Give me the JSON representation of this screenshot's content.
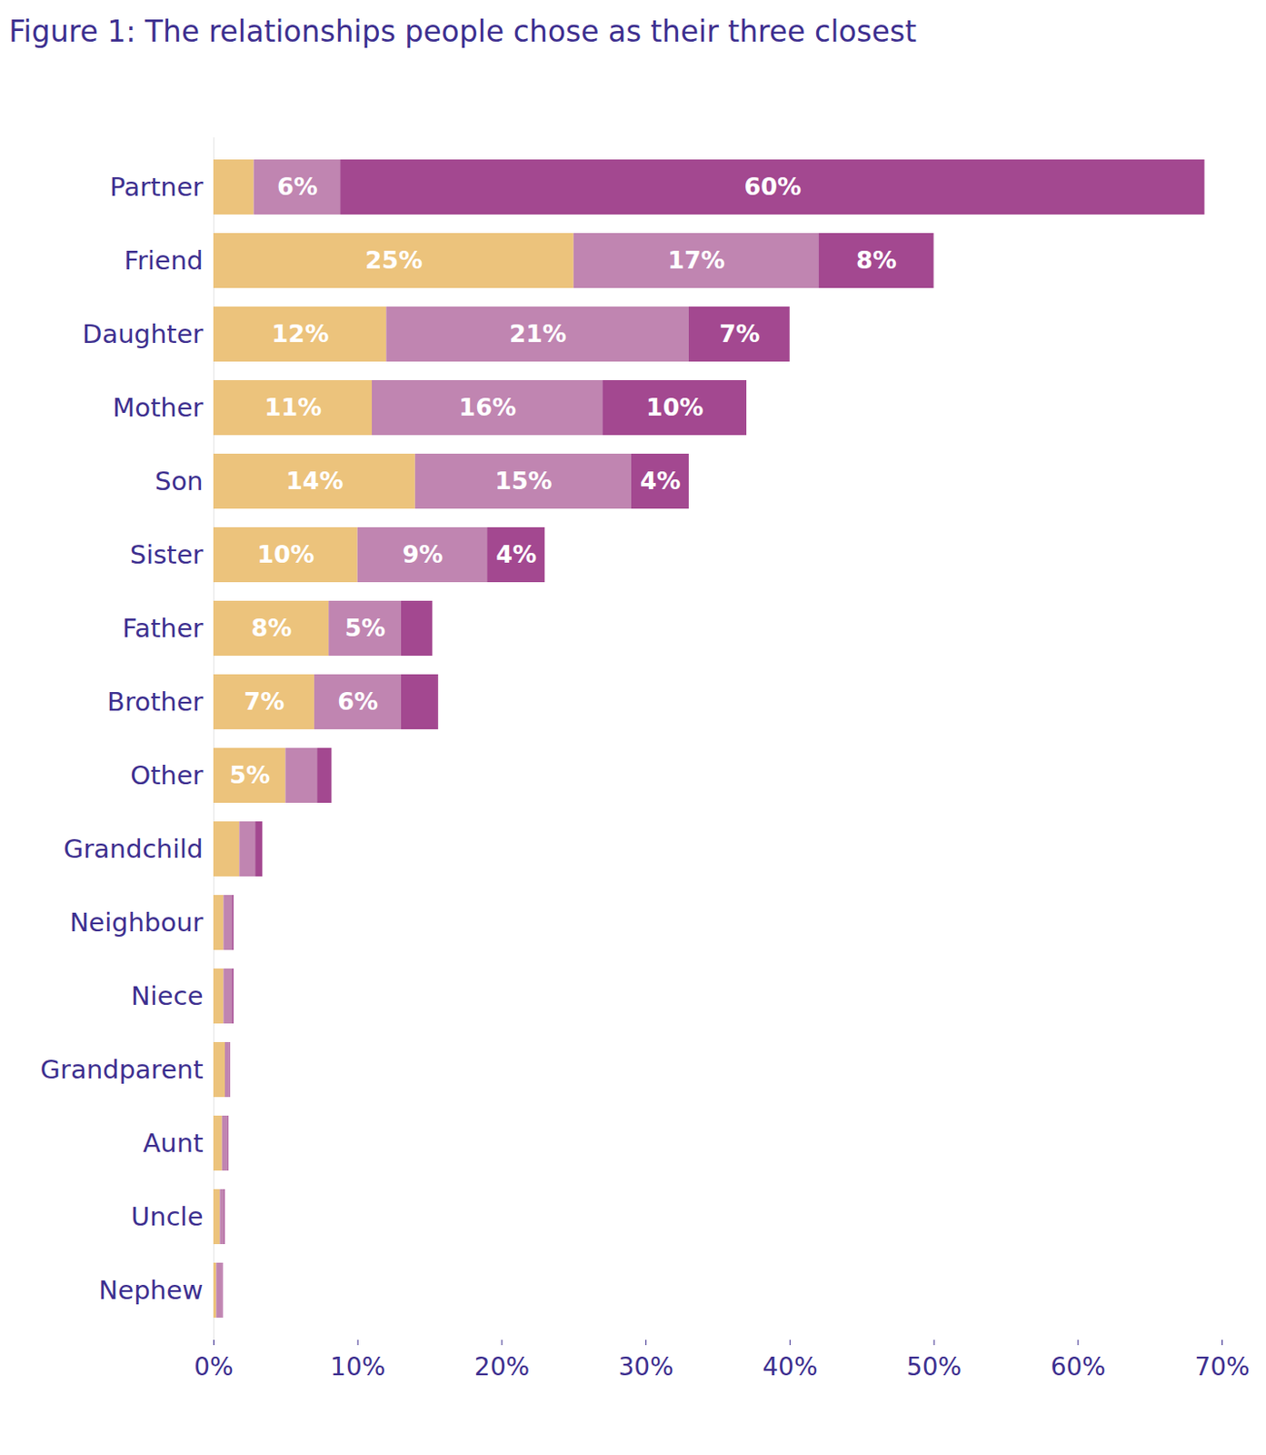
{
  "chart_data": {
    "type": "bar",
    "title": "Figure 1: The relationships people chose as their three closest",
    "orientation": "horizontal",
    "stacked": true,
    "data_labels": true,
    "grid": false,
    "categories": [
      "Partner",
      "Friend",
      "Daughter",
      "Mother",
      "Son",
      "Sister",
      "Father",
      "Brother",
      "Other",
      "Grandchild",
      "Neighbour",
      "Niece",
      "Grandparent",
      "Aunt",
      "Uncle",
      "Nephew"
    ],
    "series": [
      {
        "color": "#ecc37c",
        "values": [
          2.8,
          25,
          12,
          11,
          14,
          10,
          8,
          7,
          5,
          1.8,
          0.7,
          0.7,
          0.8,
          0.6,
          0.45,
          0.2
        ],
        "value_labels": [
          null,
          "25%",
          "12%",
          "11%",
          "14%",
          "10%",
          "8%",
          "7%",
          "5%",
          null,
          null,
          null,
          null,
          null,
          null,
          null
        ]
      },
      {
        "color": "#c085b1",
        "values": [
          6,
          17,
          21,
          16,
          15,
          9,
          5,
          6,
          2.2,
          1.1,
          0.6,
          0.6,
          0.3,
          0.4,
          0.3,
          0.4
        ],
        "value_labels": [
          "6%",
          "17%",
          "21%",
          "16%",
          "15%",
          "9%",
          "5%",
          "6%",
          null,
          null,
          null,
          null,
          null,
          null,
          null,
          null
        ]
      },
      {
        "color": "#a34890",
        "values": [
          60,
          8,
          7,
          10,
          4,
          4,
          2.2,
          2.6,
          1.0,
          0.5,
          0.1,
          0.1,
          0.05,
          0.05,
          0.05,
          0.05
        ],
        "value_labels": [
          "60%",
          "8%",
          "7%",
          "10%",
          "4%",
          "4%",
          null,
          null,
          null,
          null,
          null,
          null,
          null,
          null,
          null,
          null
        ]
      }
    ],
    "xlim": [
      0,
      70
    ],
    "xticks": [
      {
        "value": 0,
        "label": "0%"
      },
      {
        "value": 10,
        "label": "10%"
      },
      {
        "value": 20,
        "label": "20%"
      },
      {
        "value": 30,
        "label": "30%"
      },
      {
        "value": 40,
        "label": "40%"
      },
      {
        "value": 50,
        "label": "50%"
      },
      {
        "value": 60,
        "label": "60%"
      },
      {
        "value": 70,
        "label": "70%"
      }
    ]
  }
}
